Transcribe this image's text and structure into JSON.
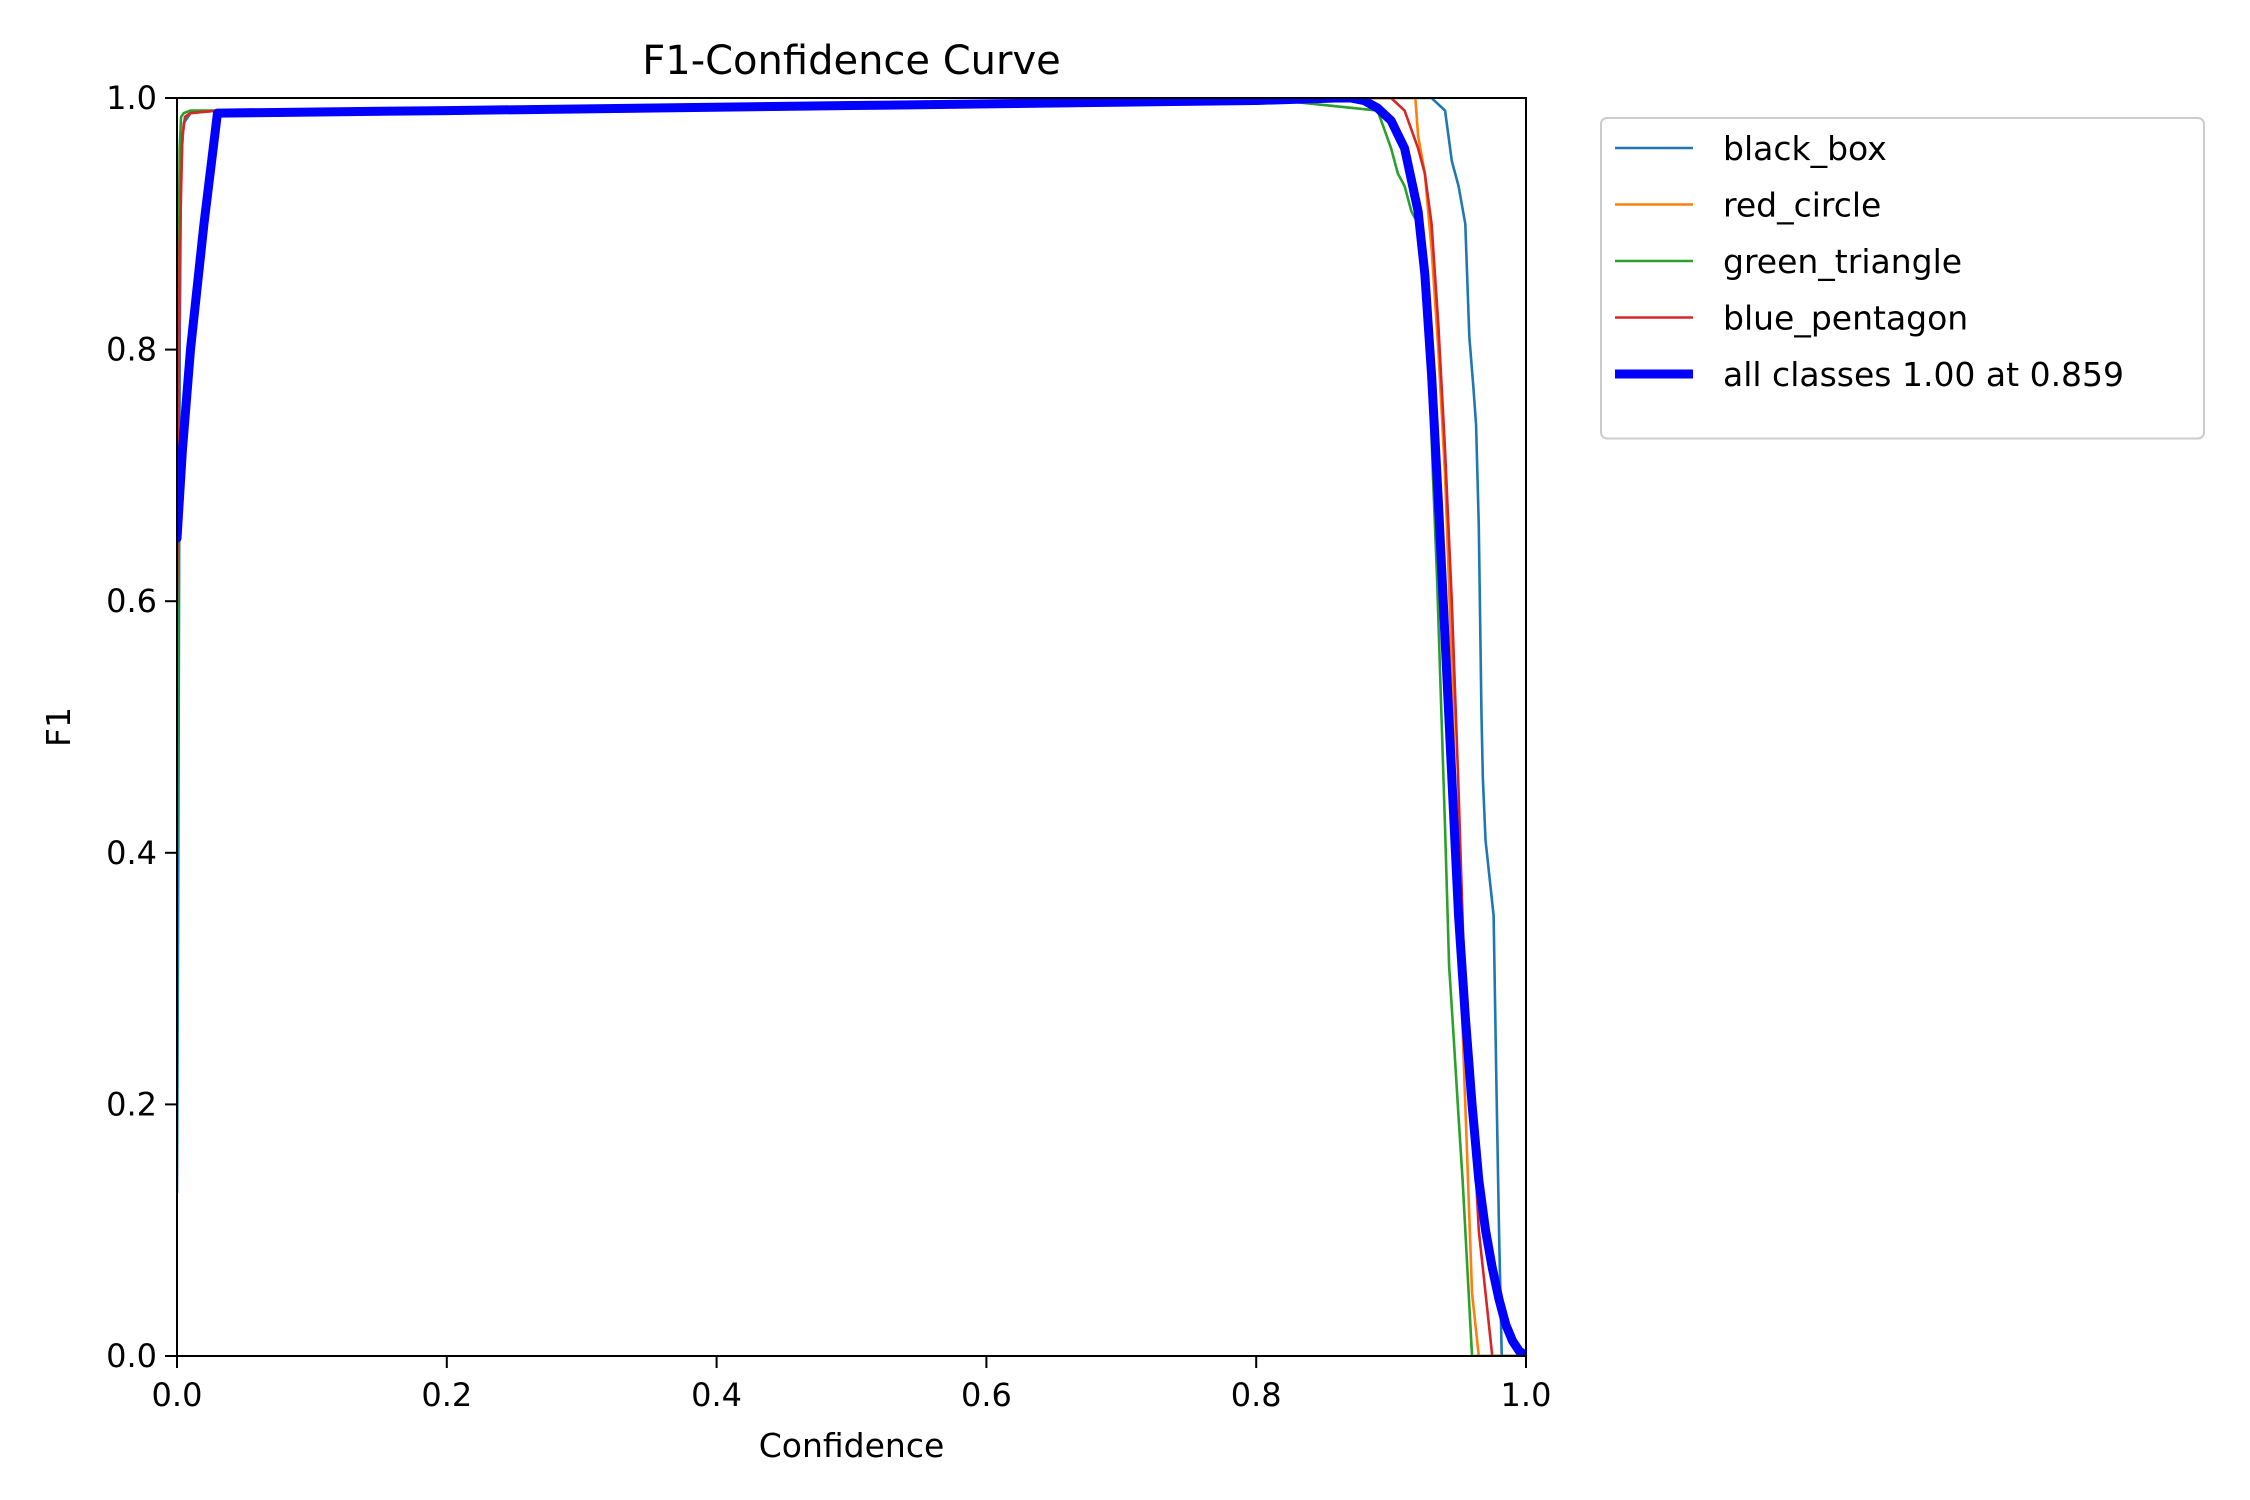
{
  "chart_data": {
    "type": "line",
    "title": "F1-Confidence Curve",
    "xlabel": "Confidence",
    "ylabel": "F1",
    "xlim": [
      0,
      1
    ],
    "ylim": [
      0,
      1
    ],
    "xticks": [
      "0.0",
      "0.2",
      "0.4",
      "0.6",
      "0.8",
      "1.0"
    ],
    "yticks": [
      "0.0",
      "0.2",
      "0.4",
      "0.6",
      "0.8",
      "1.0"
    ],
    "grid": false,
    "legend_position": "outside-upper-right",
    "series": [
      {
        "name": "black_box",
        "color": "#1f77b4",
        "width": "thin",
        "x": [
          0,
          0.001,
          0.002,
          0.003,
          0.005,
          0.01,
          0.03,
          0.2,
          0.5,
          0.8,
          0.93,
          0.94,
          0.945,
          0.95,
          0.955,
          0.958,
          0.961,
          0.963,
          0.965,
          0.967,
          0.968,
          0.97,
          0.973,
          0.976,
          0.978,
          0.98,
          0.982,
          0.984,
          1.0
        ],
        "y": [
          0.13,
          0.4,
          0.8,
          0.95,
          0.98,
          0.988,
          0.99,
          0.992,
          0.995,
          1.0,
          1.0,
          0.99,
          0.95,
          0.93,
          0.9,
          0.81,
          0.77,
          0.74,
          0.66,
          0.51,
          0.46,
          0.41,
          0.38,
          0.35,
          0.22,
          0.1,
          0.0,
          0.0,
          0.0
        ]
      },
      {
        "name": "red_circle",
        "color": "#ff7f0e",
        "width": "thin",
        "x": [
          0,
          0.002,
          0.004,
          0.006,
          0.01,
          0.03,
          0.2,
          0.5,
          0.8,
          0.918,
          0.92,
          0.925,
          0.93,
          0.935,
          0.94,
          0.945,
          0.95,
          0.955,
          0.96,
          0.965,
          0.97,
          0.975,
          1.0
        ],
        "y": [
          0.64,
          0.9,
          0.97,
          0.985,
          0.988,
          0.99,
          0.992,
          0.995,
          1.0,
          1.0,
          0.97,
          0.94,
          0.88,
          0.8,
          0.7,
          0.55,
          0.35,
          0.2,
          0.05,
          0.0,
          0.0,
          0.0,
          0.0
        ]
      },
      {
        "name": "green_triangle",
        "color": "#2ca02c",
        "width": "thin",
        "x": [
          0,
          0.001,
          0.002,
          0.003,
          0.005,
          0.01,
          0.03,
          0.2,
          0.5,
          0.8,
          0.89,
          0.9,
          0.905,
          0.91,
          0.915,
          0.92,
          0.925,
          0.928,
          0.931,
          0.934,
          0.937,
          0.94,
          0.943,
          0.946,
          0.95,
          0.953,
          0.956,
          0.96,
          0.962,
          1.0
        ],
        "y": [
          0.4,
          0.85,
          0.96,
          0.985,
          0.988,
          0.99,
          0.99,
          0.992,
          0.995,
          1.0,
          0.99,
          0.96,
          0.94,
          0.93,
          0.91,
          0.9,
          0.86,
          0.79,
          0.7,
          0.62,
          0.52,
          0.42,
          0.31,
          0.26,
          0.19,
          0.14,
          0.08,
          0.0,
          0.0,
          0.0
        ]
      },
      {
        "name": "blue_pentagon",
        "color": "#d62728",
        "width": "thin",
        "x": [
          0,
          0.002,
          0.004,
          0.006,
          0.01,
          0.03,
          0.2,
          0.5,
          0.8,
          0.9,
          0.91,
          0.92,
          0.925,
          0.93,
          0.935,
          0.94,
          0.945,
          0.95,
          0.955,
          0.96,
          0.965,
          0.97,
          0.975,
          0.98,
          1.0
        ],
        "y": [
          0.6,
          0.88,
          0.97,
          0.985,
          0.988,
          0.99,
          0.992,
          0.995,
          1.0,
          1.0,
          0.99,
          0.96,
          0.94,
          0.9,
          0.82,
          0.72,
          0.6,
          0.45,
          0.28,
          0.2,
          0.1,
          0.05,
          0.0,
          0.0,
          0.0
        ]
      },
      {
        "name": "all classes 1.00 at 0.859",
        "color": "#0000ff",
        "width": "thick",
        "x": [
          0,
          0.004,
          0.01,
          0.02,
          0.03,
          0.2,
          0.5,
          0.8,
          0.859,
          0.87,
          0.88,
          0.89,
          0.9,
          0.91,
          0.92,
          0.925,
          0.93,
          0.935,
          0.94,
          0.945,
          0.95,
          0.955,
          0.96,
          0.965,
          0.97,
          0.975,
          0.98,
          0.985,
          0.99,
          0.995,
          1.0
        ],
        "y": [
          0.65,
          0.72,
          0.8,
          0.9,
          0.988,
          0.99,
          0.994,
          0.998,
          1.0,
          1.0,
          0.998,
          0.992,
          0.982,
          0.96,
          0.91,
          0.86,
          0.78,
          0.68,
          0.57,
          0.46,
          0.35,
          0.27,
          0.2,
          0.14,
          0.1,
          0.07,
          0.045,
          0.025,
          0.012,
          0.004,
          0.0
        ]
      }
    ]
  }
}
